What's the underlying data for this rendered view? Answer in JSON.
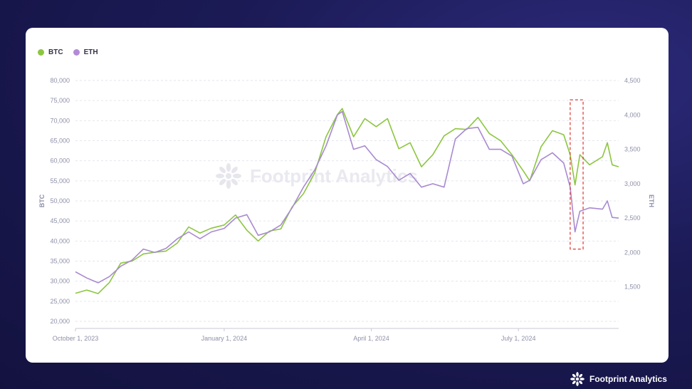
{
  "brand": {
    "name": "Footprint Analytics",
    "icon": "footprint-snowflake-icon"
  },
  "watermark": {
    "text": "Footprint Analytics",
    "icon": "footprint-snowflake-icon"
  },
  "legend": [
    {
      "label": "BTC",
      "color": "#8cc63f"
    },
    {
      "label": "ETH",
      "color": "#b28bd6"
    }
  ],
  "colors": {
    "btc": "#8cc63f",
    "eth": "#a88ad0",
    "highlight": "#e0342c",
    "axis_text": "#8e90a8",
    "grid": "#e5e6ee"
  },
  "chart_data": {
    "type": "line",
    "title": "",
    "xlabel": "",
    "ylabel": "BTC",
    "y2label": "ETH",
    "ylim": [
      20000,
      80000
    ],
    "y2lim": [
      1000,
      4500
    ],
    "yticks": [
      "80,000",
      "75,000",
      "70,000",
      "65,000",
      "60,000",
      "55,000",
      "50,000",
      "45,000",
      "40,000",
      "35,000",
      "30,000",
      "25,000",
      "20,000"
    ],
    "y2ticks": [
      "4,500",
      "4,000",
      "3,500",
      "3,000",
      "2,500",
      "2,000",
      "1,500"
    ],
    "xticks": [
      "October 1, 2023",
      "January 1, 2024",
      "April 1, 2024",
      "July 1, 2024"
    ],
    "x_range": [
      "2023-10-01",
      "2024-09-01"
    ],
    "grid": true,
    "legend_position": "top-left",
    "highlight_box": {
      "x": [
        "2024-08-02",
        "2024-08-10"
      ],
      "y2": [
        2050,
        4220
      ]
    },
    "series": [
      {
        "name": "BTC",
        "axis": "left",
        "points": [
          [
            "2023-10-01",
            27000
          ],
          [
            "2023-10-08",
            27800
          ],
          [
            "2023-10-15",
            26900
          ],
          [
            "2023-10-22",
            29700
          ],
          [
            "2023-10-29",
            34500
          ],
          [
            "2023-11-05",
            35000
          ],
          [
            "2023-11-12",
            36800
          ],
          [
            "2023-11-19",
            37200
          ],
          [
            "2023-11-26",
            37500
          ],
          [
            "2023-12-03",
            39500
          ],
          [
            "2023-12-10",
            43500
          ],
          [
            "2023-12-17",
            42000
          ],
          [
            "2023-12-24",
            43200
          ],
          [
            "2024-01-01",
            44000
          ],
          [
            "2024-01-08",
            46500
          ],
          [
            "2024-01-15",
            42700
          ],
          [
            "2024-01-22",
            40000
          ],
          [
            "2024-01-29",
            42500
          ],
          [
            "2024-02-05",
            43000
          ],
          [
            "2024-02-12",
            48500
          ],
          [
            "2024-02-19",
            51800
          ],
          [
            "2024-02-26",
            57000
          ],
          [
            "2024-03-04",
            66000
          ],
          [
            "2024-03-11",
            71500
          ],
          [
            "2024-03-14",
            73000
          ],
          [
            "2024-03-21",
            66000
          ],
          [
            "2024-03-28",
            70500
          ],
          [
            "2024-04-04",
            68500
          ],
          [
            "2024-04-11",
            70500
          ],
          [
            "2024-04-18",
            63000
          ],
          [
            "2024-04-25",
            64500
          ],
          [
            "2024-05-02",
            58500
          ],
          [
            "2024-05-09",
            61500
          ],
          [
            "2024-05-16",
            66200
          ],
          [
            "2024-05-23",
            68000
          ],
          [
            "2024-05-30",
            67800
          ],
          [
            "2024-06-06",
            70800
          ],
          [
            "2024-06-13",
            66800
          ],
          [
            "2024-06-20",
            65000
          ],
          [
            "2024-06-27",
            61500
          ],
          [
            "2024-07-04",
            57500
          ],
          [
            "2024-07-08",
            55000
          ],
          [
            "2024-07-15",
            63500
          ],
          [
            "2024-07-22",
            67500
          ],
          [
            "2024-07-29",
            66500
          ],
          [
            "2024-08-02",
            61500
          ],
          [
            "2024-08-05",
            54000
          ],
          [
            "2024-08-08",
            61500
          ],
          [
            "2024-08-14",
            59000
          ],
          [
            "2024-08-22",
            61000
          ],
          [
            "2024-08-25",
            64500
          ],
          [
            "2024-08-28",
            59000
          ],
          [
            "2024-09-01",
            58500
          ]
        ]
      },
      {
        "name": "ETH",
        "axis": "right",
        "points": [
          [
            "2023-10-01",
            1720
          ],
          [
            "2023-10-08",
            1630
          ],
          [
            "2023-10-15",
            1560
          ],
          [
            "2023-10-22",
            1650
          ],
          [
            "2023-10-29",
            1800
          ],
          [
            "2023-11-05",
            1890
          ],
          [
            "2023-11-12",
            2050
          ],
          [
            "2023-11-19",
            2000
          ],
          [
            "2023-11-26",
            2060
          ],
          [
            "2023-12-03",
            2200
          ],
          [
            "2023-12-10",
            2300
          ],
          [
            "2023-12-17",
            2200
          ],
          [
            "2023-12-24",
            2300
          ],
          [
            "2024-01-01",
            2350
          ],
          [
            "2024-01-08",
            2500
          ],
          [
            "2024-01-15",
            2550
          ],
          [
            "2024-01-22",
            2250
          ],
          [
            "2024-01-29",
            2300
          ],
          [
            "2024-02-05",
            2400
          ],
          [
            "2024-02-12",
            2650
          ],
          [
            "2024-02-19",
            2950
          ],
          [
            "2024-02-26",
            3200
          ],
          [
            "2024-03-04",
            3550
          ],
          [
            "2024-03-11",
            4000
          ],
          [
            "2024-03-14",
            4050
          ],
          [
            "2024-03-21",
            3500
          ],
          [
            "2024-03-28",
            3550
          ],
          [
            "2024-04-04",
            3350
          ],
          [
            "2024-04-11",
            3250
          ],
          [
            "2024-04-18",
            3050
          ],
          [
            "2024-04-25",
            3150
          ],
          [
            "2024-05-02",
            2950
          ],
          [
            "2024-05-09",
            3000
          ],
          [
            "2024-05-16",
            2950
          ],
          [
            "2024-05-23",
            3650
          ],
          [
            "2024-05-30",
            3800
          ],
          [
            "2024-06-06",
            3820
          ],
          [
            "2024-06-13",
            3500
          ],
          [
            "2024-06-20",
            3500
          ],
          [
            "2024-06-27",
            3400
          ],
          [
            "2024-07-04",
            3000
          ],
          [
            "2024-07-08",
            3050
          ],
          [
            "2024-07-15",
            3350
          ],
          [
            "2024-07-22",
            3450
          ],
          [
            "2024-07-29",
            3300
          ],
          [
            "2024-08-02",
            2950
          ],
          [
            "2024-08-05",
            2300
          ],
          [
            "2024-08-08",
            2600
          ],
          [
            "2024-08-14",
            2650
          ],
          [
            "2024-08-22",
            2630
          ],
          [
            "2024-08-25",
            2750
          ],
          [
            "2024-08-28",
            2510
          ],
          [
            "2024-09-01",
            2500
          ]
        ]
      }
    ]
  }
}
